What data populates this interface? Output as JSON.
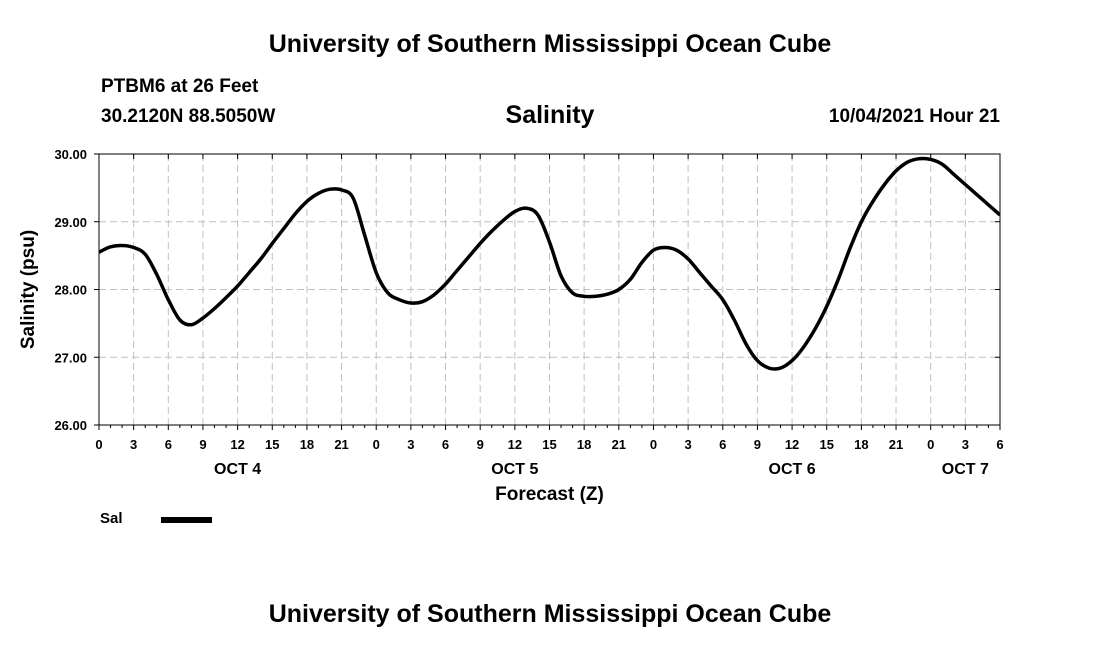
{
  "header": {
    "title": "University of Southern Mississippi Ocean Cube",
    "station": "PTBM6 at 26 Feet",
    "coordinates": "30.2120N  88.5050W",
    "date_hour": "10/04/2021 Hour 21"
  },
  "footer": {
    "title": "University of Southern Mississippi Ocean Cube"
  },
  "chart_data": {
    "type": "line",
    "title": "Salinity",
    "xlabel": "Forecast (Z)",
    "ylabel": "Salinity (psu)",
    "ylim": [
      26.0,
      30.0
    ],
    "xlim": [
      0,
      78
    ],
    "x_unit": "hours since OCT 4 00Z",
    "y_ticks": [
      26.0,
      27.0,
      28.0,
      29.0,
      30.0
    ],
    "y_tick_labels": [
      "26.00",
      "27.00",
      "28.00",
      "29.00",
      "30.00"
    ],
    "x_tick_hours": [
      0,
      3,
      6,
      9,
      12,
      15,
      18,
      21,
      24,
      27,
      30,
      33,
      36,
      39,
      42,
      45,
      48,
      51,
      54,
      57,
      60,
      63,
      66,
      69,
      72,
      75,
      78
    ],
    "x_tick_labels": [
      "0",
      "3",
      "6",
      "9",
      "12",
      "15",
      "18",
      "21",
      "0",
      "3",
      "6",
      "9",
      "12",
      "15",
      "18",
      "21",
      "0",
      "3",
      "6",
      "9",
      "12",
      "15",
      "18",
      "21",
      "0",
      "3",
      "6"
    ],
    "day_labels": [
      {
        "hour": 12,
        "label": "OCT 4"
      },
      {
        "hour": 36,
        "label": "OCT 5"
      },
      {
        "hour": 60,
        "label": "OCT 6"
      },
      {
        "hour": 75,
        "label": "OCT 7"
      }
    ],
    "grid": true,
    "legend": {
      "position": "bottom-left",
      "entries": [
        {
          "label": "Sal",
          "color": "#000000"
        }
      ]
    },
    "series": [
      {
        "name": "Sal",
        "color": "#000000",
        "x": [
          0,
          1,
          2,
          3,
          4,
          5,
          6,
          7,
          8,
          9,
          10,
          11,
          12,
          13,
          14,
          15,
          16,
          17,
          18,
          19,
          20,
          21,
          22,
          23,
          24,
          25,
          26,
          27,
          28,
          29,
          30,
          31,
          32,
          33,
          34,
          35,
          36,
          37,
          38,
          39,
          40,
          41,
          42,
          43,
          44,
          45,
          46,
          47,
          48,
          49,
          50,
          51,
          52,
          53,
          54,
          55,
          56,
          57,
          58,
          59,
          60,
          61,
          62,
          63,
          64,
          65,
          66,
          67,
          68,
          69,
          70,
          71,
          72,
          73,
          74,
          75,
          76,
          77,
          78
        ],
        "values": [
          28.55,
          28.63,
          28.65,
          28.62,
          28.52,
          28.22,
          27.85,
          27.55,
          27.48,
          27.58,
          27.72,
          27.88,
          28.05,
          28.25,
          28.45,
          28.68,
          28.9,
          29.12,
          29.3,
          29.42,
          29.48,
          29.47,
          29.35,
          28.8,
          28.25,
          27.95,
          27.85,
          27.8,
          27.82,
          27.92,
          28.08,
          28.28,
          28.48,
          28.68,
          28.86,
          29.02,
          29.15,
          29.2,
          29.1,
          28.7,
          28.2,
          27.95,
          27.9,
          27.9,
          27.93,
          28.0,
          28.15,
          28.4,
          28.58,
          28.62,
          28.58,
          28.45,
          28.25,
          28.05,
          27.85,
          27.55,
          27.2,
          26.95,
          26.84,
          26.84,
          26.95,
          27.15,
          27.42,
          27.75,
          28.15,
          28.6,
          29.0,
          29.3,
          29.55,
          29.75,
          29.88,
          29.93,
          29.92,
          29.85,
          29.7,
          29.55,
          29.4,
          29.25,
          29.1
        ]
      }
    ]
  }
}
